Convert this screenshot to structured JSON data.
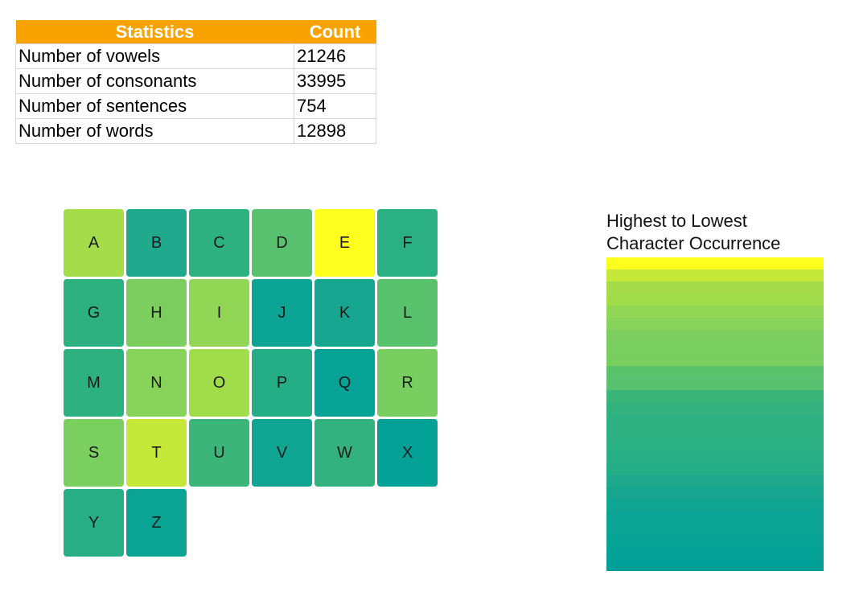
{
  "stats": {
    "headers": [
      "Statistics",
      "Count"
    ],
    "rows": [
      {
        "label": "Number of vowels",
        "value": "21246"
      },
      {
        "label": "Number of consonants",
        "value": "33995"
      },
      {
        "label": "Number of sentences",
        "value": "754"
      },
      {
        "label": "Number of words",
        "value": "12898"
      }
    ]
  },
  "letters": [
    {
      "char": "A",
      "color": "#a5dd4a"
    },
    {
      "char": "B",
      "color": "#20a98c"
    },
    {
      "char": "C",
      "color": "#2db181"
    },
    {
      "char": "D",
      "color": "#58c16f"
    },
    {
      "char": "E",
      "color": "#fefe1f"
    },
    {
      "char": "F",
      "color": "#2ab082"
    },
    {
      "char": "G",
      "color": "#2eb180"
    },
    {
      "char": "H",
      "color": "#7ccf5e"
    },
    {
      "char": "I",
      "color": "#92d656"
    },
    {
      "char": "J",
      "color": "#0ba393"
    },
    {
      "char": "K",
      "color": "#16a690"
    },
    {
      "char": "L",
      "color": "#5ac26d"
    },
    {
      "char": "M",
      "color": "#2db181"
    },
    {
      "char": "N",
      "color": "#88d35a"
    },
    {
      "char": "O",
      "color": "#a1dc4b"
    },
    {
      "char": "P",
      "color": "#25ad86"
    },
    {
      "char": "Q",
      "color": "#06a295"
    },
    {
      "char": "R",
      "color": "#78ce5f"
    },
    {
      "char": "S",
      "color": "#7bcf5e"
    },
    {
      "char": "T",
      "color": "#c6e838"
    },
    {
      "char": "U",
      "color": "#3cb57b"
    },
    {
      "char": "V",
      "color": "#0fa592"
    },
    {
      "char": "W",
      "color": "#33b27f"
    },
    {
      "char": "X",
      "color": "#03a196"
    },
    {
      "char": "Y",
      "color": "#28ae84"
    },
    {
      "char": "Z",
      "color": "#0aa394"
    }
  ],
  "legend": {
    "title_line1": "Highest to Lowest",
    "title_line2": "Character Occurrence",
    "bands": [
      "#fefe1f",
      "#c6e838",
      "#a5dd4a",
      "#a1dc4b",
      "#92d656",
      "#88d35a",
      "#7ccf5e",
      "#7bcf5e",
      "#78ce5f",
      "#5ac26d",
      "#58c16f",
      "#3cb57b",
      "#33b27f",
      "#2eb180",
      "#2db181",
      "#2ab082",
      "#28ae84",
      "#25ad86",
      "#20a98c",
      "#16a690",
      "#0fa592",
      "#0ba393",
      "#0aa394",
      "#06a295",
      "#03a196",
      "#00a098"
    ]
  }
}
